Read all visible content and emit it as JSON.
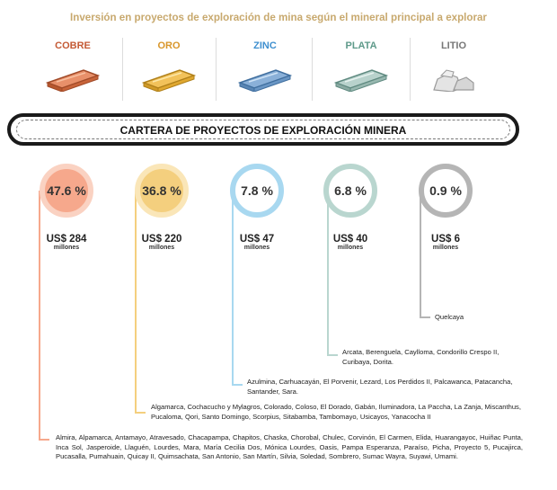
{
  "chart_data": {
    "type": "pie",
    "title": "Inversión en proyectos de exploración de mina según el mineral principal a explorar",
    "subtitle": "CARTERA DE PROYECTOS DE EXPLORACIÓN MINERA",
    "categories": [
      "COBRE",
      "ORO",
      "ZINC",
      "PLATA",
      "LITIO"
    ],
    "values": [
      47.6,
      36.8,
      7.8,
      6.8,
      0.9
    ],
    "value_labels": [
      "47.6 %",
      "36.8 %",
      "7.8 %",
      "6.8 %",
      "0.9 %"
    ],
    "investment": [
      "US$ 284",
      "US$ 220",
      "US$ 47",
      "US$ 40",
      "US$ 6"
    ],
    "investment_unit": "millones",
    "colors": [
      "#F6A88C",
      "#F4CF7E",
      "#A8D8F0",
      "#B9D6CF",
      "#B5B5B5"
    ],
    "label_colors": [
      "#C45A35",
      "#D9962A",
      "#3E8FCF",
      "#5E9A8A",
      "#777777"
    ],
    "projects": [
      "Almira, Alpamarca, Antamayo, Atravesado, Chacapampa, Chapitos, Chaska, Chorobal, Chulec, Corvinón, El Carmen, Elida, Huarangayoc, Huiñac Punta, Inca Sol, Jasperoide, Llaguén, Lourdes, Mara, María Cecilia Dos, Mónica Lourdes, Oasis, Pampa Esperanza, Paraíso, Picha, Proyecto 5, Pucajirca, Pucasalla, Pumahuain, Quicay II, Quimsachata, San Antonio, San Martín, Silvia, Soledad, Sombrero, Sumac Wayra, Suyawi, Umami.",
      "Algamarca, Cochacucho y Mylagros, Colorado, Coloso, El Dorado, Gabán, Iluminadora, La Pacchа, La Zanja, Miscanthus, Pucaloma, Qori, Santo Domingo, Scorpius, Sitabamba, Tambomayo, Usicayos, Yanacocha II",
      "Azulmina, Carhuacayán, El Porvenir, Lezard, Los Perdidos II, Palcawanca, Patacancha, Santander, Sara.",
      "Arcata, Berenguela, Caylloma, Condorillo Crespo II, Curibaya, Dorita.",
      "Quelcaya"
    ]
  }
}
